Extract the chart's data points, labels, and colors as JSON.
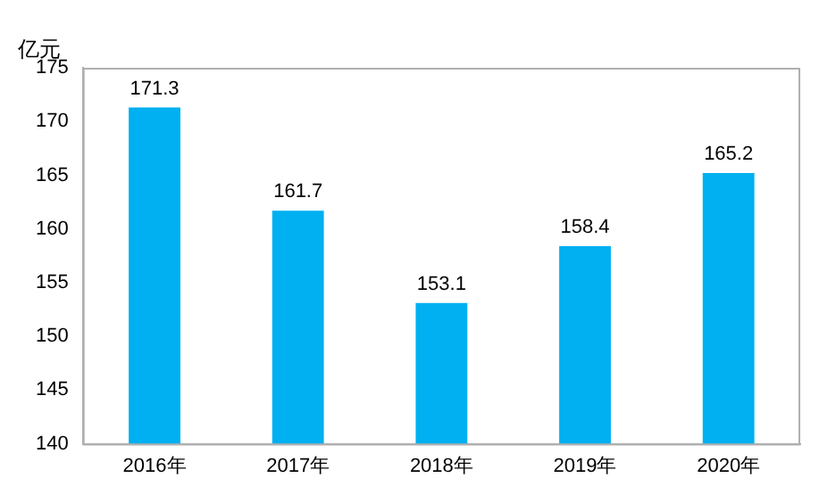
{
  "chart_data": {
    "type": "bar",
    "ylabel": "亿元",
    "categories": [
      "2016年",
      "2017年",
      "2018年",
      "2019年",
      "2020年"
    ],
    "values": [
      171.3,
      161.7,
      153.1,
      158.4,
      165.2
    ],
    "color": "#00b0f0",
    "ylim": [
      140,
      175
    ],
    "yticks": [
      140,
      145,
      150,
      155,
      160,
      165,
      170,
      175
    ],
    "data_labels": true,
    "grid": false,
    "legend": false
  }
}
